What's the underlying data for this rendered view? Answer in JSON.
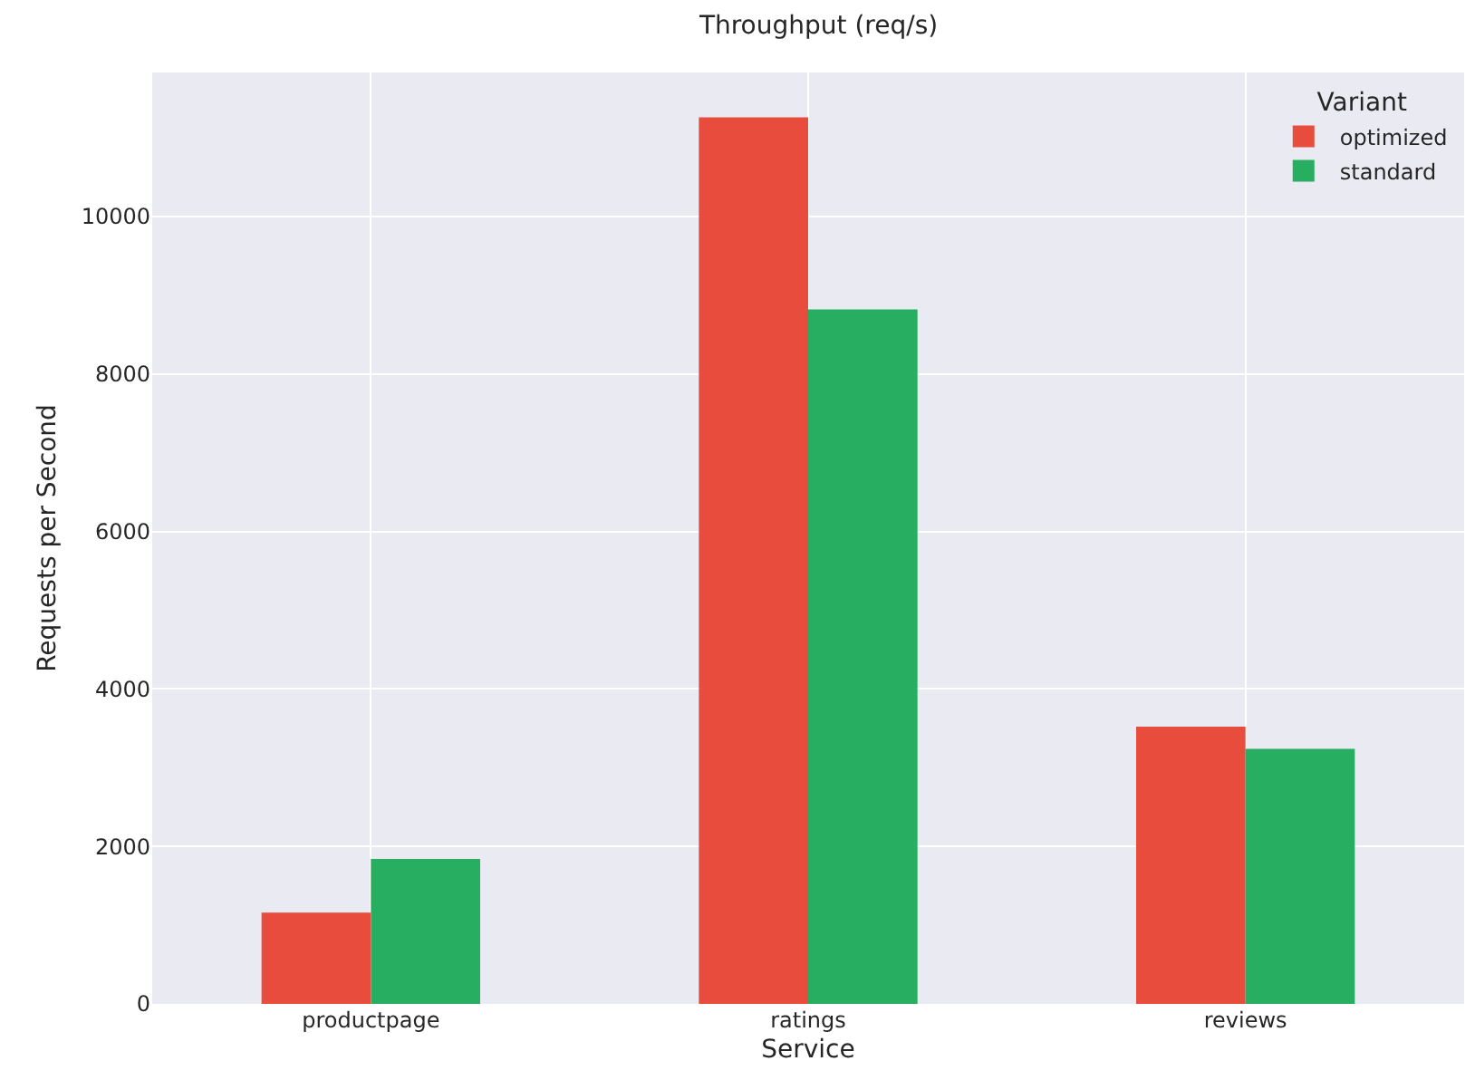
{
  "chart_data": {
    "type": "bar",
    "title": "Throughput (req/s)",
    "xlabel": "Service",
    "ylabel": "Requests per Second",
    "legend_title": "Variant",
    "categories": [
      "productpage",
      "ratings",
      "reviews"
    ],
    "series": [
      {
        "name": "optimized",
        "color": "#e74c3c",
        "values": [
          1160,
          11260,
          3520
        ]
      },
      {
        "name": "standard",
        "color": "#27ae60",
        "values": [
          1840,
          8820,
          3240
        ]
      }
    ],
    "ylim": [
      0,
      11830
    ],
    "yticks": [
      0,
      2000,
      4000,
      6000,
      8000,
      10000
    ],
    "grid": true,
    "legend": "top right"
  }
}
